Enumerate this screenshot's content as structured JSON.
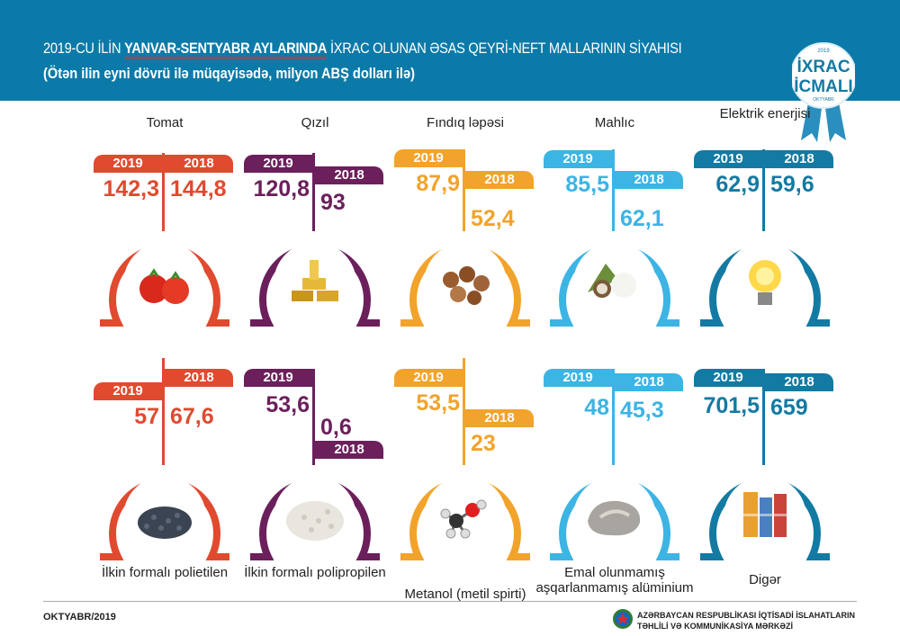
{
  "header": {
    "title_prefix": "2019-CU İLİN ",
    "title_highlight": "YANVAR-SENTYABR AYLARINDA",
    "title_suffix": " İXRAC OLUNAN ƏSAS QEYRİ-NEFT MALLARININ SİYAHISI",
    "subtitle": "(Ötən ilin eyni dövrü ilə müqayisədə, milyon ABŞ dolları ilə)",
    "logo": {
      "year": "2019",
      "line1": "İXRAC",
      "line2": "İCMALI",
      "month": "OKTYABR"
    }
  },
  "year_labels": {
    "current": "2019",
    "previous": "2018"
  },
  "items": [
    {
      "name": "Tomat",
      "v2019": "142,3",
      "v2018": "144,8",
      "color": "#e04a2f",
      "icon": "tomato-icon"
    },
    {
      "name": "Qızıl",
      "v2019": "120,8",
      "v2018": "93",
      "color": "#6b1f5b",
      "icon": "gold-bars-icon"
    },
    {
      "name": "Fındıq ləpəsi",
      "v2019": "87,9",
      "v2018": "52,4",
      "color": "#f2a32b",
      "icon": "hazelnut-icon"
    },
    {
      "name": "Mahlıc",
      "v2019": "85,5",
      "v2018": "62,1",
      "color": "#3cb4e4",
      "icon": "cotton-icon"
    },
    {
      "name": "Elektrik enerjisi",
      "v2019": "62,9",
      "v2018": "59,6",
      "color": "#137aa3",
      "icon": "light-bulb-icon"
    },
    {
      "name": "İlkin formalı polietilen",
      "v2019": "57",
      "v2018": "67,6",
      "color": "#e04a2f",
      "icon": "polyethylene-pellets-icon"
    },
    {
      "name": "İlkin formalı polipropilen",
      "v2019": "53,6",
      "v2018": "0,6",
      "color": "#6b1f5b",
      "icon": "polypropylene-pellets-icon"
    },
    {
      "name": "Metanol (metil spirti)",
      "v2019": "53,5",
      "v2018": "23",
      "color": "#f2a32b",
      "icon": "methanol-molecule-icon"
    },
    {
      "name": "Emal olunmamış aşqarlanmamış alüminium",
      "v2019": "48",
      "v2018": "45,3",
      "color": "#3cb4e4",
      "icon": "aluminium-icon"
    },
    {
      "name": "Digər",
      "v2019": "701,5",
      "v2018": "659",
      "color": "#137aa3",
      "icon": "containers-icon"
    }
  ],
  "footer": {
    "date": "OKTYABR/2019",
    "org_line1": "AZƏRBAYCAN RESPUBLİKASI İQTİSADİ İSLAHATLARIN",
    "org_line2": "TƏHLİLİ VƏ KOMMUNİKASİYA MƏRKƏZİ"
  }
}
